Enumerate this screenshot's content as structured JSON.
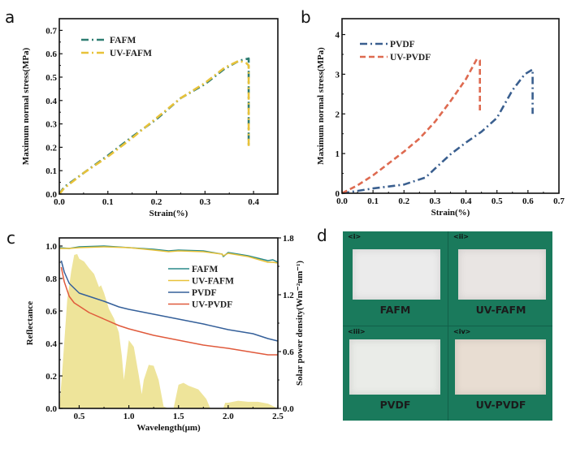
{
  "panel_labels": {
    "a": "a",
    "b": "b",
    "c": "c",
    "d": "d"
  },
  "chart_data": [
    {
      "id": "a",
      "type": "line",
      "title": "",
      "xlabel": "Strain(%)",
      "ylabel": "Maximum normal stress(MPa)",
      "xlim": [
        0,
        0.45
      ],
      "ylim": [
        0,
        0.75
      ],
      "xticks": [
        0.0,
        0.1,
        0.2,
        0.3,
        0.4
      ],
      "xtick_labels": [
        "0.0",
        "0.1",
        "0.2",
        "0.3",
        "0.4"
      ],
      "yticks": [
        0.0,
        0.1,
        0.2,
        0.3,
        0.4,
        0.5,
        0.6,
        0.7
      ],
      "ytick_labels": [
        "0.0",
        "0.1",
        "0.2",
        "0.3",
        "0.4",
        "0.5",
        "0.6",
        "0.7"
      ],
      "legend_position": "top-left",
      "grid": false,
      "series": [
        {
          "name": "FAFM",
          "color": "#2e7d72",
          "dash": "dash-dot",
          "x": [
            0,
            0.01,
            0.05,
            0.1,
            0.15,
            0.2,
            0.25,
            0.3,
            0.34,
            0.37,
            0.39,
            0.39
          ],
          "y": [
            0,
            0.03,
            0.09,
            0.165,
            0.245,
            0.32,
            0.41,
            0.47,
            0.535,
            0.57,
            0.58,
            0.2
          ]
        },
        {
          "name": "UV-FAFM",
          "color": "#e8c23a",
          "dash": "dash-dot",
          "x": [
            0,
            0.01,
            0.05,
            0.1,
            0.15,
            0.2,
            0.25,
            0.3,
            0.34,
            0.37,
            0.385,
            0.39,
            0.39
          ],
          "y": [
            0,
            0.025,
            0.09,
            0.16,
            0.24,
            0.325,
            0.41,
            0.475,
            0.54,
            0.57,
            0.56,
            0.55,
            0.2
          ]
        }
      ]
    },
    {
      "id": "b",
      "type": "line",
      "title": "",
      "xlabel": "Strain(%)",
      "ylabel": "Maximum normal stress(MPa)",
      "xlim": [
        0,
        0.7
      ],
      "ylim": [
        0,
        4.4
      ],
      "xticks": [
        0.0,
        0.1,
        0.2,
        0.3,
        0.4,
        0.5,
        0.6,
        0.7
      ],
      "xtick_labels": [
        "0.0",
        "0.1",
        "0.2",
        "0.3",
        "0.4",
        "0.5",
        "0.6",
        "0.7"
      ],
      "yticks": [
        0,
        1,
        2,
        3,
        4
      ],
      "ytick_labels": [
        "0",
        "1",
        "2",
        "3",
        "4"
      ],
      "legend_position": "top-left",
      "grid": false,
      "series": [
        {
          "name": "PVDF",
          "color": "#3a5f8f",
          "dash": "dash-dot",
          "x": [
            0,
            0.05,
            0.1,
            0.2,
            0.27,
            0.3,
            0.35,
            0.4,
            0.45,
            0.5,
            0.55,
            0.59,
            0.615,
            0.615
          ],
          "y": [
            0,
            0.06,
            0.12,
            0.22,
            0.4,
            0.62,
            0.98,
            1.28,
            1.55,
            1.9,
            2.6,
            3.0,
            3.12,
            2.0
          ]
        },
        {
          "name": "UV-PVDF",
          "color": "#de6a50",
          "dash": "dash",
          "x": [
            0,
            0.05,
            0.1,
            0.15,
            0.2,
            0.25,
            0.3,
            0.35,
            0.4,
            0.435,
            0.445,
            0.445
          ],
          "y": [
            0,
            0.2,
            0.45,
            0.75,
            1.05,
            1.38,
            1.8,
            2.32,
            2.88,
            3.38,
            3.35,
            2.05
          ]
        }
      ]
    },
    {
      "id": "c",
      "type": "line",
      "title": "",
      "xlabel": "Wavelength(μm)",
      "ylabel": "Reflectance",
      "ylabel_right": "Solar power density(Wm⁻²nm⁻¹)",
      "xlim": [
        0.3,
        2.5
      ],
      "ylim": [
        0,
        1.05
      ],
      "ylim_right": [
        0,
        1.8
      ],
      "xticks": [
        0.5,
        1.0,
        1.5,
        2.0,
        2.5
      ],
      "xtick_labels": [
        "0.5",
        "1.0",
        "1.5",
        "2.0",
        "2.5"
      ],
      "yticks": [
        0.0,
        0.2,
        0.4,
        0.6,
        0.8,
        1.0
      ],
      "ytick_labels": [
        "0.0",
        "0.2",
        "0.4",
        "0.6",
        "0.8",
        "1.0"
      ],
      "yticks_right": [
        0.0,
        0.6,
        1.2,
        1.8
      ],
      "ytick_labels_right": [
        "0.0",
        "0.6",
        "1.2",
        "1.8"
      ],
      "legend_position": "center-right",
      "grid": false,
      "series": [
        {
          "name": "FAFM",
          "color": "#2a8a8a",
          "x": [
            0.3,
            0.4,
            0.5,
            0.75,
            1.0,
            1.25,
            1.4,
            1.5,
            1.75,
            1.94,
            1.95,
            2.0,
            2.2,
            2.4,
            2.45,
            2.5
          ],
          "y": [
            0.99,
            0.985,
            0.995,
            1.0,
            0.99,
            0.98,
            0.97,
            0.975,
            0.97,
            0.95,
            0.935,
            0.96,
            0.94,
            0.91,
            0.915,
            0.9
          ]
        },
        {
          "name": "UV-FAFM",
          "color": "#e8c23a",
          "x": [
            0.3,
            0.4,
            0.5,
            0.75,
            1.0,
            1.25,
            1.4,
            1.5,
            1.75,
            1.94,
            1.95,
            2.0,
            2.2,
            2.4,
            2.45,
            2.5
          ],
          "y": [
            0.985,
            0.985,
            0.99,
            0.995,
            0.99,
            0.975,
            0.965,
            0.97,
            0.965,
            0.95,
            0.94,
            0.955,
            0.935,
            0.9,
            0.9,
            0.895
          ]
        },
        {
          "name": "PVDF",
          "color": "#35609a",
          "x": [
            0.32,
            0.35,
            0.4,
            0.5,
            0.6,
            0.75,
            0.9,
            1.0,
            1.25,
            1.5,
            1.75,
            2.0,
            2.25,
            2.4,
            2.5
          ],
          "y": [
            0.91,
            0.84,
            0.77,
            0.71,
            0.69,
            0.66,
            0.625,
            0.61,
            0.58,
            0.55,
            0.52,
            0.485,
            0.46,
            0.43,
            0.415
          ]
        },
        {
          "name": "UV-PVDF",
          "color": "#e05a3c",
          "x": [
            0.32,
            0.35,
            0.4,
            0.45,
            0.5,
            0.6,
            0.75,
            0.9,
            1.0,
            1.25,
            1.5,
            1.75,
            2.0,
            2.25,
            2.4,
            2.5
          ],
          "y": [
            0.87,
            0.78,
            0.69,
            0.65,
            0.63,
            0.59,
            0.55,
            0.51,
            0.49,
            0.45,
            0.42,
            0.39,
            0.37,
            0.345,
            0.33,
            0.33
          ]
        }
      ],
      "area_series": {
        "name": "Solar spectrum",
        "axis": "right",
        "color": "#eee49a",
        "x": [
          0.3,
          0.33,
          0.38,
          0.42,
          0.45,
          0.48,
          0.5,
          0.55,
          0.6,
          0.65,
          0.7,
          0.72,
          0.75,
          0.8,
          0.85,
          0.9,
          0.93,
          0.95,
          1.0,
          1.05,
          1.1,
          1.13,
          1.15,
          1.2,
          1.25,
          1.3,
          1.35,
          1.4,
          1.45,
          1.5,
          1.55,
          1.6,
          1.7,
          1.78,
          1.82,
          1.95,
          1.97,
          2.0,
          2.1,
          2.2,
          2.3,
          2.4,
          2.5
        ],
        "y": [
          0.0,
          0.4,
          1.15,
          1.45,
          1.62,
          1.63,
          1.58,
          1.55,
          1.48,
          1.42,
          1.28,
          1.3,
          1.22,
          1.05,
          0.95,
          0.8,
          0.55,
          0.3,
          0.72,
          0.65,
          0.35,
          0.15,
          0.3,
          0.46,
          0.45,
          0.3,
          0.02,
          0.0,
          0.0,
          0.25,
          0.27,
          0.24,
          0.2,
          0.1,
          0.0,
          0.0,
          0.06,
          0.06,
          0.08,
          0.07,
          0.07,
          0.05,
          0.0
        ]
      }
    }
  ],
  "photos": [
    {
      "tag": "<i>",
      "label": "FAFM",
      "tint": "#ebebeb"
    },
    {
      "tag": "<ii>",
      "label": "UV-FAFM",
      "tint": "#e9e5e3"
    },
    {
      "tag": "<iii>",
      "label": "PVDF",
      "tint": "#eaece8"
    },
    {
      "tag": "<iv>",
      "label": "UV-PVDF",
      "tint": "#e8ddd2"
    }
  ]
}
